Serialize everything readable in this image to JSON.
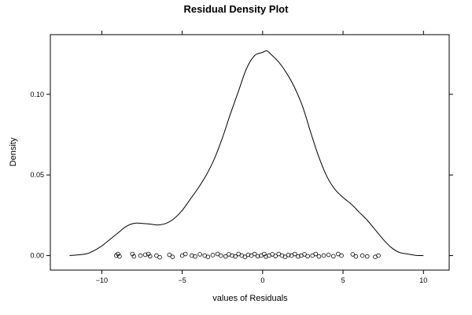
{
  "chart_data": {
    "type": "line",
    "title": "Residual Density Plot",
    "xlabel": "values of Residuals",
    "ylabel": "Density",
    "xlim": [
      -13.2,
      11.6
    ],
    "ylim": [
      -0.009,
      0.137
    ],
    "xticks": [
      -10,
      -5,
      0,
      5,
      10
    ],
    "xtick_labels": [
      "−10",
      "−5",
      "0",
      "5",
      "10"
    ],
    "yticks": [
      0.0,
      0.05,
      0.1
    ],
    "ytick_labels": [
      "0.00",
      "0.05",
      "0.10"
    ],
    "grid": false,
    "legend": "none",
    "series": [
      {
        "x": [
          -12.0,
          -11.0,
          -10.5,
          -10.0,
          -9.5,
          -9.0,
          -8.5,
          -8.0,
          -7.5,
          -7.0,
          -6.5,
          -6.0,
          -5.5,
          -5.0,
          -4.5,
          -4.0,
          -3.5,
          -3.0,
          -2.5,
          -2.0,
          -1.5,
          -1.0,
          -0.5,
          0.0,
          0.25,
          0.5,
          1.0,
          1.5,
          2.0,
          2.5,
          3.0,
          3.5,
          4.0,
          4.5,
          5.0,
          5.5,
          6.0,
          6.5,
          7.0,
          7.5,
          8.0,
          8.5,
          9.0,
          9.5,
          10.0
        ],
        "y": [
          0.0,
          0.001,
          0.003,
          0.006,
          0.01,
          0.014,
          0.018,
          0.02,
          0.02,
          0.0195,
          0.019,
          0.02,
          0.023,
          0.028,
          0.035,
          0.042,
          0.05,
          0.06,
          0.073,
          0.088,
          0.102,
          0.116,
          0.124,
          0.126,
          0.127,
          0.125,
          0.12,
          0.113,
          0.104,
          0.092,
          0.076,
          0.061,
          0.049,
          0.041,
          0.036,
          0.032,
          0.027,
          0.022,
          0.016,
          0.01,
          0.005,
          0.002,
          0.001,
          0.0002,
          0.0
        ]
      }
    ],
    "rug_points": [
      [
        -9.1,
        0.0
      ],
      [
        -9.0,
        0.001
      ],
      [
        -8.9,
        -0.0005
      ],
      [
        -8.1,
        0.001
      ],
      [
        -8.0,
        -0.0005
      ],
      [
        -7.6,
        0.0
      ],
      [
        -7.3,
        0.0005
      ],
      [
        -7.1,
        0.001
      ],
      [
        -7.0,
        -0.0004
      ],
      [
        -6.6,
        0.0
      ],
      [
        -6.4,
        -0.001
      ],
      [
        -5.8,
        0.0005
      ],
      [
        -5.6,
        -0.0008
      ],
      [
        -5.0,
        0.0
      ],
      [
        -4.8,
        0.001
      ],
      [
        -4.4,
        0.0
      ],
      [
        -4.2,
        -0.0005
      ],
      [
        -3.9,
        0.0008
      ],
      [
        -3.6,
        0.0
      ],
      [
        -3.4,
        -0.0008
      ],
      [
        -3.1,
        0.0003
      ],
      [
        -2.8,
        0.001
      ],
      [
        -2.6,
        0.0
      ],
      [
        -2.3,
        -0.0005
      ],
      [
        -2.1,
        0.0008
      ],
      [
        -1.9,
        0.0
      ],
      [
        -1.7,
        -0.0005
      ],
      [
        -1.5,
        0.001
      ],
      [
        -1.3,
        0.0
      ],
      [
        -1.1,
        -0.0008
      ],
      [
        -0.9,
        0.0005
      ],
      [
        -0.7,
        0.0
      ],
      [
        -0.5,
        0.001
      ],
      [
        -0.3,
        -0.0004
      ],
      [
        -0.1,
        0.0
      ],
      [
        0.1,
        0.001
      ],
      [
        0.2,
        -0.0006
      ],
      [
        0.4,
        0.0
      ],
      [
        0.6,
        0.0008
      ],
      [
        0.8,
        -0.0003
      ],
      [
        1.0,
        0.001
      ],
      [
        1.2,
        0.0
      ],
      [
        1.4,
        -0.0008
      ],
      [
        1.6,
        0.0004
      ],
      [
        1.8,
        0.0
      ],
      [
        2.0,
        0.001
      ],
      [
        2.2,
        -0.0005
      ],
      [
        2.4,
        0.0
      ],
      [
        2.6,
        0.0008
      ],
      [
        2.8,
        -0.0004
      ],
      [
        3.1,
        0.0
      ],
      [
        3.3,
        0.001
      ],
      [
        3.5,
        -0.0005
      ],
      [
        3.8,
        0.0
      ],
      [
        4.1,
        0.0005
      ],
      [
        4.4,
        -0.0004
      ],
      [
        4.7,
        0.001
      ],
      [
        4.9,
        0.0
      ],
      [
        5.6,
        0.0008
      ],
      [
        5.8,
        -0.0005
      ],
      [
        6.2,
        0.0
      ],
      [
        6.5,
        -0.0005
      ],
      [
        7.0,
        -0.0008
      ],
      [
        7.2,
        0.0
      ]
    ]
  }
}
